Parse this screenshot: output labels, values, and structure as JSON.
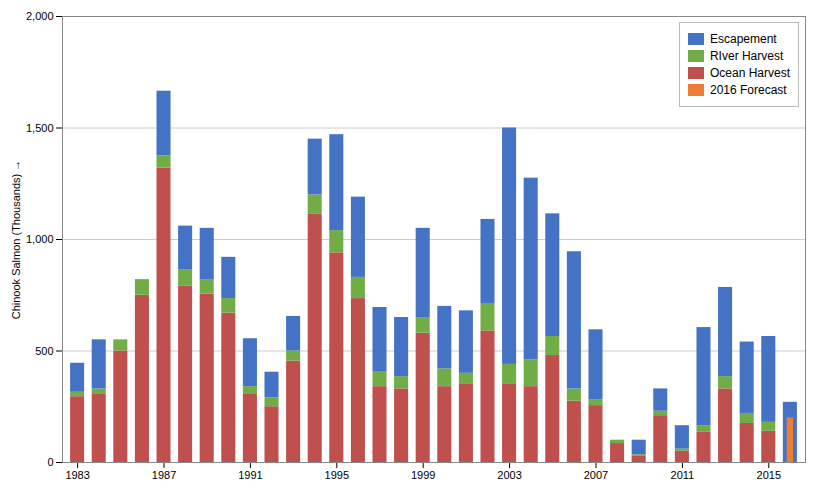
{
  "chart_data": {
    "type": "bar",
    "stacked": true,
    "ylabel": "Chinook Salmon (Thousands)",
    "categories": [
      "1983",
      null,
      null,
      null,
      "1987",
      null,
      null,
      null,
      "1991",
      null,
      null,
      null,
      "1995",
      null,
      null,
      null,
      "1999",
      null,
      null,
      null,
      "2003",
      null,
      null,
      null,
      "2007",
      null,
      null,
      null,
      "2011",
      null,
      null,
      null,
      "2015",
      null
    ],
    "series": [
      {
        "name": "Ocean Harvest",
        "color": "#C0504D",
        "values": [
          295,
          305,
          500,
          750,
          1320,
          790,
          755,
          670,
          305,
          250,
          455,
          1115,
          940,
          735,
          340,
          330,
          580,
          340,
          350,
          590,
          350,
          340,
          480,
          275,
          255,
          85,
          30,
          210,
          50,
          135,
          330,
          175,
          140,
          0
        ]
      },
      {
        "name": "RIver Harvest",
        "color": "#70AD47",
        "values": [
          20,
          25,
          50,
          70,
          55,
          75,
          65,
          65,
          35,
          40,
          45,
          85,
          100,
          95,
          65,
          55,
          70,
          80,
          50,
          120,
          90,
          120,
          85,
          55,
          25,
          15,
          5,
          20,
          10,
          30,
          55,
          45,
          40,
          0
        ]
      },
      {
        "name": "Escapement",
        "color": "#4472C4",
        "values": [
          130,
          220,
          0,
          0,
          290,
          195,
          230,
          185,
          215,
          115,
          155,
          250,
          430,
          360,
          290,
          265,
          400,
          280,
          280,
          380,
          1060,
          815,
          550,
          615,
          315,
          0,
          65,
          100,
          105,
          440,
          400,
          320,
          385,
          270
        ]
      },
      {
        "name": "2016 Forecast",
        "color": "#ED7D31",
        "stacked": false,
        "values": [
          null,
          null,
          null,
          null,
          null,
          null,
          null,
          null,
          null,
          null,
          null,
          null,
          null,
          null,
          null,
          null,
          null,
          null,
          null,
          null,
          null,
          null,
          null,
          null,
          null,
          null,
          null,
          null,
          null,
          null,
          null,
          null,
          null,
          200
        ]
      }
    ],
    "ylim": [
      0,
      2000
    ],
    "yticks": [
      0,
      500,
      {
        "value": 1000,
        "label": "1,000"
      },
      {
        "value": 1500,
        "label": "1,500"
      },
      {
        "value": 2000,
        "label": "2,000"
      }
    ],
    "grid": true,
    "legend": "upper right"
  }
}
